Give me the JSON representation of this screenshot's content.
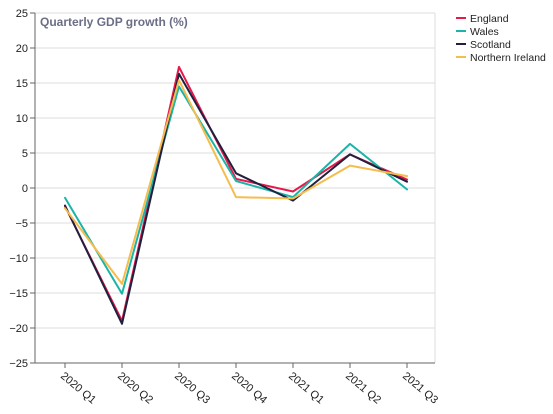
{
  "chart_data": {
    "type": "line",
    "title": "Quarterly GDP growth (%)",
    "xlabel": "",
    "ylabel": "",
    "categories": [
      "2020 Q1",
      "2020 Q2",
      "2020 Q3",
      "2020 Q4",
      "2021 Q1",
      "2021 Q2",
      "2021 Q3"
    ],
    "ylim": [
      -25,
      25
    ],
    "yticks": [
      -25,
      -20,
      -15,
      -10,
      -5,
      0,
      5,
      10,
      15,
      20,
      25
    ],
    "ytick_labels": [
      "−25",
      "−20",
      "−15",
      "−10",
      "−5",
      "0",
      "5",
      "10",
      "15",
      "20",
      "25"
    ],
    "grid": true,
    "legend_position": "top-right",
    "series": [
      {
        "name": "England",
        "color": "#e6194b",
        "values": [
          -2.6,
          -19.0,
          17.3,
          1.3,
          -0.5,
          4.8,
          1.2
        ]
      },
      {
        "name": "Wales",
        "color": "#1ab5a8",
        "values": [
          -1.4,
          -15.1,
          14.5,
          1.0,
          -1.3,
          6.3,
          -0.2
        ]
      },
      {
        "name": "Scotland",
        "color": "#202040",
        "values": [
          -2.5,
          -19.4,
          16.3,
          2.1,
          -1.8,
          4.8,
          0.9
        ]
      },
      {
        "name": "Northern Ireland",
        "color": "#f5bc4e",
        "values": [
          -2.9,
          -13.7,
          15.4,
          -1.3,
          -1.5,
          3.2,
          1.7
        ]
      }
    ]
  }
}
